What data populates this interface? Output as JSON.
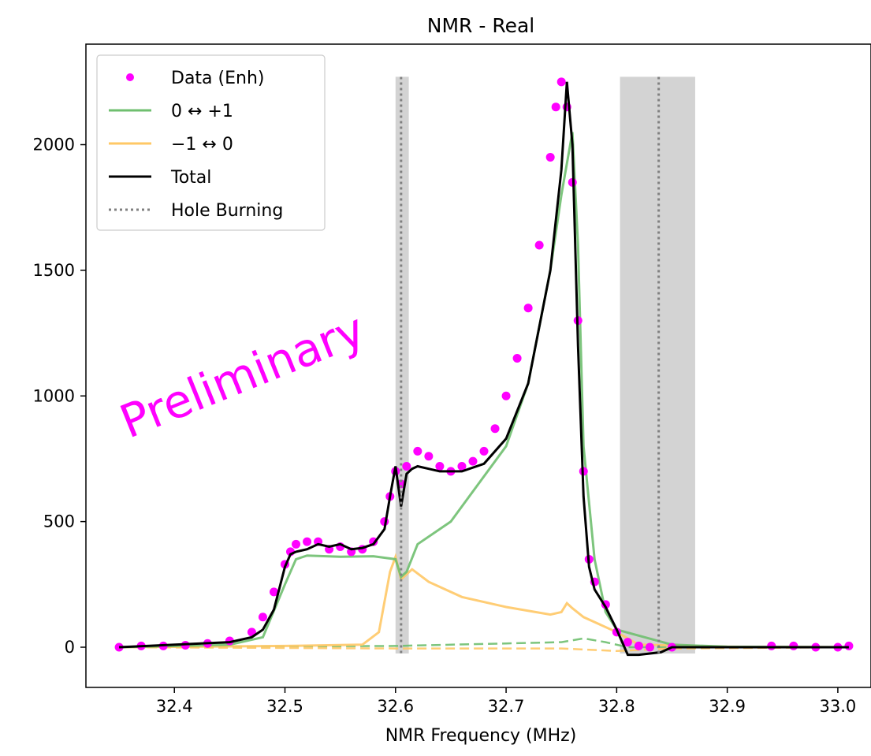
{
  "chart_data": {
    "type": "line",
    "title": "NMR - Real",
    "xlabel": "NMR Frequency (MHz)",
    "ylabel": "",
    "xlim": [
      32.32,
      33.03
    ],
    "ylim": [
      -160,
      2400
    ],
    "xticks": [
      32.4,
      32.5,
      32.6,
      32.7,
      32.8,
      32.9,
      33.0
    ],
    "xtick_labels": [
      "32.4",
      "32.5",
      "32.6",
      "32.7",
      "32.8",
      "32.9",
      "33.0"
    ],
    "yticks": [
      0,
      500,
      1000,
      1500,
      2000
    ],
    "ytick_labels": [
      "0",
      "500",
      "1000",
      "1500",
      "2000"
    ],
    "grid": false,
    "legend_placement": "top-left",
    "watermark": "Preliminary",
    "colors": {
      "data": "#ff00ff",
      "plus": "#6fbf6f",
      "minus": "#ffc866",
      "total": "#000000",
      "hole": "#808080",
      "band": "#d3d3d3"
    },
    "hole_burning": [
      {
        "center": 32.605,
        "band": [
          32.6,
          32.612
        ]
      },
      {
        "center": 32.838,
        "band": [
          32.803,
          32.871
        ]
      }
    ],
    "series": [
      {
        "name": "Data (Enh)",
        "kind": "scatter",
        "x": [
          32.35,
          32.37,
          32.39,
          32.41,
          32.43,
          32.45,
          32.47,
          32.48,
          32.49,
          32.5,
          32.505,
          32.51,
          32.52,
          32.53,
          32.54,
          32.55,
          32.56,
          32.57,
          32.58,
          32.59,
          32.595,
          32.6,
          32.605,
          32.61,
          32.62,
          32.63,
          32.64,
          32.65,
          32.66,
          32.67,
          32.68,
          32.69,
          32.7,
          32.71,
          32.72,
          32.73,
          32.74,
          32.745,
          32.75,
          32.755,
          32.76,
          32.765,
          32.77,
          32.775,
          32.78,
          32.79,
          32.8,
          32.81,
          32.82,
          32.83,
          32.85,
          32.94,
          32.96,
          32.98,
          33.0,
          33.01
        ],
        "y": [
          0,
          5,
          5,
          8,
          15,
          25,
          60,
          120,
          220,
          330,
          380,
          410,
          420,
          420,
          390,
          400,
          380,
          390,
          420,
          500,
          600,
          700,
          650,
          720,
          780,
          760,
          720,
          700,
          720,
          740,
          780,
          870,
          1000,
          1150,
          1350,
          1600,
          1950,
          2150,
          2250,
          2150,
          1850,
          1300,
          700,
          350,
          260,
          170,
          60,
          20,
          5,
          0,
          0,
          5,
          5,
          0,
          0,
          5
        ]
      },
      {
        "name": "0 ↔ +1",
        "kind": "line",
        "x": [
          32.35,
          32.45,
          32.48,
          32.5,
          32.51,
          32.52,
          32.55,
          32.58,
          32.6,
          32.605,
          32.61,
          32.62,
          32.65,
          32.7,
          32.72,
          32.74,
          32.75,
          32.76,
          32.765,
          32.77,
          32.78,
          32.79,
          32.8,
          32.85,
          32.9,
          33.01
        ],
        "y": [
          0,
          10,
          40,
          250,
          350,
          365,
          360,
          362,
          350,
          280,
          300,
          410,
          500,
          800,
          1050,
          1500,
          1800,
          2050,
          1600,
          800,
          350,
          140,
          70,
          10,
          2,
          0
        ]
      },
      {
        "name": "−1 ↔ 0",
        "kind": "line",
        "x": [
          32.35,
          32.5,
          32.57,
          32.585,
          32.595,
          32.6,
          32.605,
          32.615,
          32.63,
          32.66,
          32.7,
          32.74,
          32.75,
          32.755,
          32.76,
          32.77,
          32.78,
          32.8,
          32.82,
          32.9,
          33.01
        ],
        "y": [
          0,
          5,
          10,
          60,
          300,
          360,
          270,
          310,
          260,
          200,
          160,
          130,
          140,
          175,
          155,
          120,
          100,
          60,
          10,
          2,
          0
        ]
      },
      {
        "name": "Total",
        "kind": "line",
        "x": [
          32.35,
          32.45,
          32.47,
          32.48,
          32.49,
          32.5,
          32.505,
          32.51,
          32.52,
          32.53,
          32.54,
          32.55,
          32.56,
          32.57,
          32.58,
          32.59,
          32.595,
          32.6,
          32.605,
          32.61,
          32.615,
          32.62,
          32.63,
          32.64,
          32.66,
          32.68,
          32.7,
          32.72,
          32.74,
          32.75,
          32.755,
          32.76,
          32.765,
          32.77,
          32.775,
          32.78,
          32.79,
          32.8,
          32.81,
          32.82,
          32.84,
          32.85,
          32.9,
          33.01
        ],
        "y": [
          0,
          20,
          40,
          70,
          150,
          320,
          370,
          380,
          390,
          410,
          400,
          410,
          390,
          395,
          410,
          470,
          600,
          720,
          560,
          690,
          710,
          720,
          710,
          700,
          700,
          730,
          830,
          1050,
          1500,
          1900,
          2250,
          2000,
          1200,
          600,
          320,
          230,
          160,
          70,
          -30,
          -30,
          -20,
          0,
          0,
          0
        ]
      },
      {
        "name": "Hole Burning",
        "kind": "line",
        "style": "dotted"
      },
      {
        "name": "",
        "kind": "line",
        "style": "dashed",
        "color": "plus",
        "x": [
          32.35,
          32.6,
          32.7,
          32.75,
          32.77,
          32.79,
          32.81,
          33.01
        ],
        "y": [
          0,
          5,
          15,
          20,
          35,
          20,
          0,
          0
        ]
      },
      {
        "name": "",
        "kind": "line",
        "style": "dashed",
        "color": "minus",
        "x": [
          32.35,
          32.6,
          32.75,
          32.8,
          32.85,
          33.01
        ],
        "y": [
          0,
          -5,
          -5,
          -15,
          -5,
          0
        ]
      }
    ]
  }
}
